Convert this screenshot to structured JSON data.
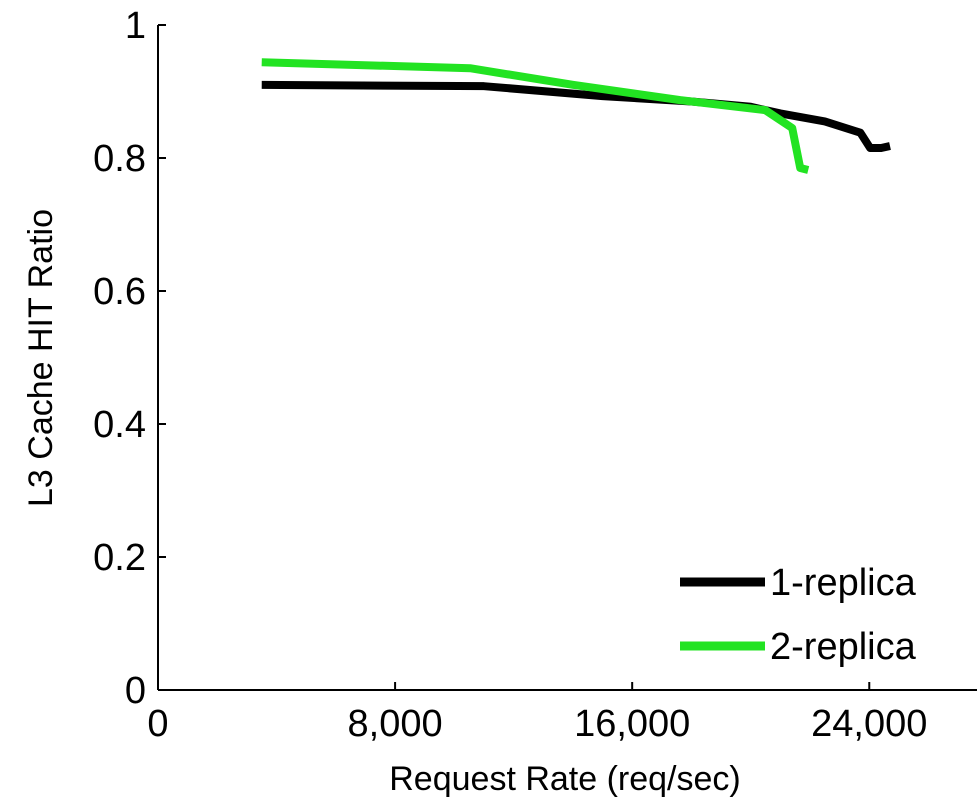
{
  "chart_data": {
    "type": "line",
    "xlabel": "Request Rate (req/sec)",
    "ylabel": "L3 Cache HIT Ratio",
    "xlim": [
      0,
      27500
    ],
    "ylim": [
      0,
      1
    ],
    "xticks": [
      0,
      {
        "value": 8000,
        "label": "8,000"
      },
      {
        "value": 16000,
        "label": "16,000"
      },
      {
        "value": 24000,
        "label": "24,000"
      }
    ],
    "yticks": [
      0,
      0.2,
      0.4,
      0.6,
      0.8,
      1
    ],
    "legend": "lower right",
    "series": [
      {
        "name": "1-replica",
        "color": "#000000",
        "x": [
          3500,
          11000,
          15000,
          18000,
          20000,
          21000,
          22500,
          23700,
          24030,
          24400,
          24700
        ],
        "values": [
          0.91,
          0.908,
          0.893,
          0.885,
          0.877,
          0.867,
          0.855,
          0.838,
          0.815,
          0.815,
          0.818
        ]
      },
      {
        "name": "2-replica",
        "color": "#22e322",
        "x": [
          3500,
          10530,
          14000,
          17620,
          20490,
          21400,
          21670,
          21940
        ],
        "values": [
          0.944,
          0.935,
          0.91,
          0.887,
          0.872,
          0.845,
          0.785,
          0.782
        ]
      }
    ]
  }
}
